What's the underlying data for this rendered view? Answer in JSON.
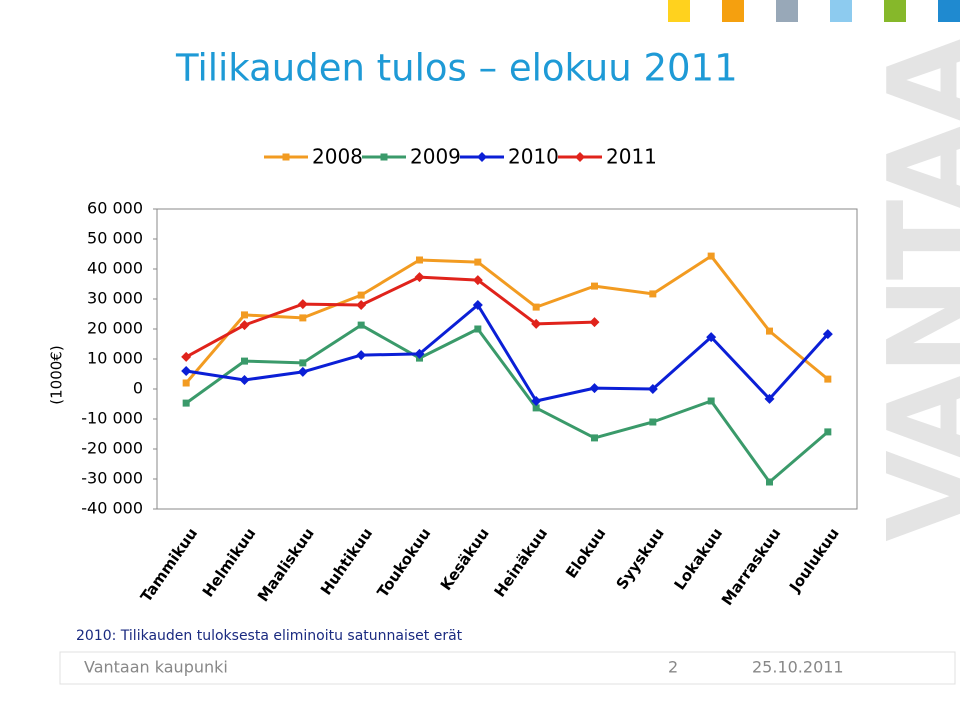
{
  "title": "Tilikauden tulos – elokuu 2011",
  "watermark": "VANTAA",
  "chart_data": {
    "type": "line",
    "ylabel": "(1000€)",
    "categories": [
      "Tammikuu",
      "Helmikuu",
      "Maaliskuu",
      "Huhtikuu",
      "Toukokuu",
      "Kesäkuu",
      "Heinäkuu",
      "Elokuu",
      "Syyskuu",
      "Lokakuu",
      "Marraskuu",
      "Joulukuu"
    ],
    "series": [
      {
        "name": "2008",
        "color": "#f29b21",
        "marker": "square",
        "values": [
          2000,
          24700,
          23700,
          31300,
          43000,
          42300,
          27300,
          34300,
          31700,
          44300,
          19300,
          3300
        ]
      },
      {
        "name": "2009",
        "color": "#3a9a6a",
        "marker": "square",
        "values": [
          -4700,
          9300,
          8700,
          21300,
          10300,
          20000,
          -6300,
          -16300,
          -11000,
          -4000,
          -31000,
          -14300
        ]
      },
      {
        "name": "2010",
        "color": "#0b1fd6",
        "marker": "diamond",
        "values": [
          6000,
          3000,
          5700,
          11300,
          11700,
          28000,
          -4000,
          300,
          0,
          17300,
          -3300,
          18300
        ]
      },
      {
        "name": "2011",
        "color": "#e0231b",
        "marker": "diamond",
        "values": [
          10700,
          21300,
          28300,
          28000,
          37300,
          36300,
          21700,
          22300,
          null,
          null,
          null,
          null
        ]
      }
    ],
    "ylim": [
      -40000,
      60000
    ],
    "yticks": [
      {
        "value": -40000,
        "label": "-40 000"
      },
      {
        "value": -30000,
        "label": "-30 000"
      },
      {
        "value": -20000,
        "label": "-20 000"
      },
      {
        "value": -10000,
        "label": "-10 000"
      },
      0,
      {
        "value": 10000,
        "label": "10 000"
      },
      {
        "value": 20000,
        "label": "20 000"
      },
      {
        "value": 30000,
        "label": "30 000"
      },
      {
        "value": 40000,
        "label": "40 000"
      },
      {
        "value": 50000,
        "label": "50 000"
      },
      {
        "value": 60000,
        "label": "60 000"
      }
    ],
    "grid": false,
    "legend": "top"
  },
  "note": "2010: Tilikauden tuloksesta eliminoitu satunnaiset erät",
  "footer": {
    "org": "Vantaan kaupunki",
    "page": "2",
    "date": "25.10.2011"
  }
}
